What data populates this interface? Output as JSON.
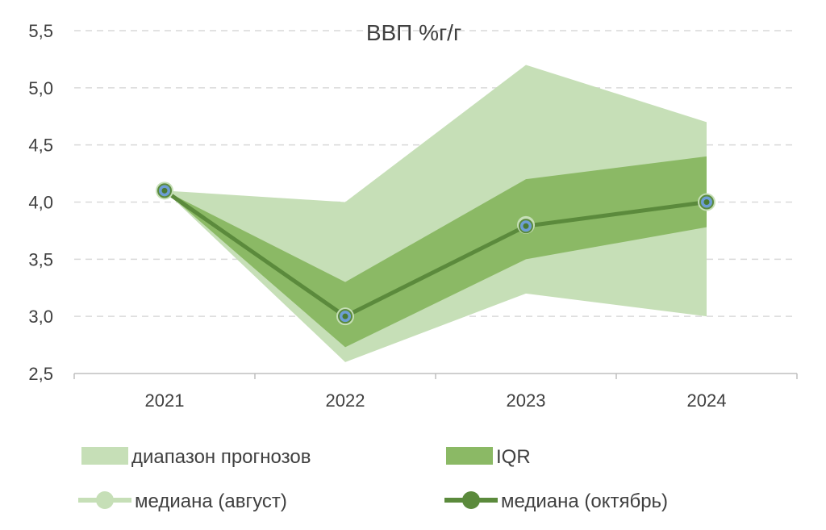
{
  "chart_data": {
    "type": "line",
    "title": "ВВП %г/г",
    "xlabel": "",
    "ylabel": "",
    "categories": [
      "2021",
      "2022",
      "2023",
      "2024"
    ],
    "ylim": [
      2.5,
      5.5
    ],
    "yticks": [
      2.5,
      3.0,
      3.5,
      4.0,
      4.5,
      5.0,
      5.5
    ],
    "ytick_labels": [
      "2,5",
      "3,0",
      "3,5",
      "4,0",
      "4,5",
      "5,0",
      "5,5"
    ],
    "grid": "horizontal dashed",
    "legend_position": "bottom",
    "series": [
      {
        "name": "диапазон прогнозов",
        "kind": "band",
        "low": [
          4.1,
          2.6,
          3.2,
          3.0
        ],
        "high": [
          4.1,
          4.0,
          5.2,
          4.7
        ],
        "color": "#c6dfb7"
      },
      {
        "name": "IQR",
        "kind": "band",
        "low": [
          4.1,
          2.73,
          3.5,
          3.78
        ],
        "high": [
          4.1,
          3.3,
          4.2,
          4.4
        ],
        "color": "#8bb965"
      },
      {
        "name": "медиана (август)",
        "kind": "line",
        "values": [
          4.1,
          3.0,
          3.8,
          4.0
        ],
        "color": "#c6dfb7"
      },
      {
        "name": "медиана (октябрь)",
        "kind": "line",
        "values": [
          4.1,
          3.0,
          3.79,
          4.0
        ],
        "color": "#5b8a3c"
      }
    ]
  }
}
